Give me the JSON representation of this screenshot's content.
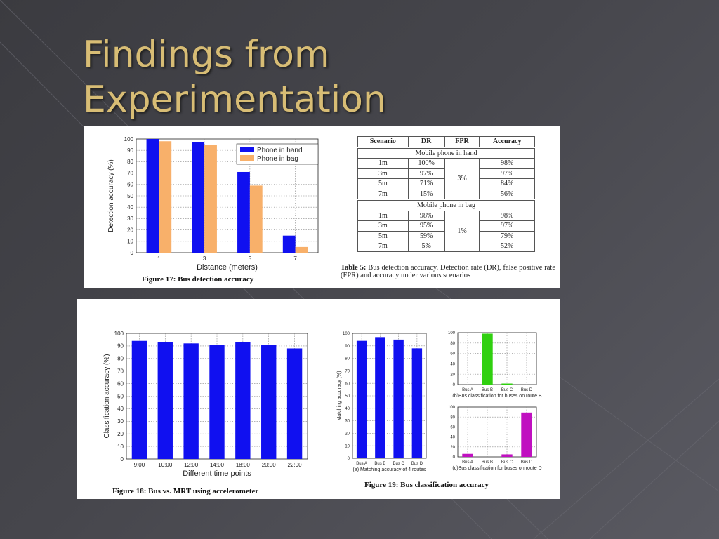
{
  "slide": {
    "title_line1": "Findings from",
    "title_line2": "Experimentation"
  },
  "colors": {
    "title": "#d8bd75",
    "phone_in_hand": "#1010f0",
    "phone_in_bag": "#f8b06a",
    "accent_blue": "#1010f0",
    "accent_green": "#30d010",
    "accent_magenta": "#c010c0"
  },
  "figure17": {
    "caption": "Figure 17: Bus detection accuracy"
  },
  "table5": {
    "caption_label": "Table 5:",
    "caption_text": " Bus detection accuracy. Detection rate (DR), false positive rate (FPR) and accuracy under various scenarios",
    "headers": [
      "Scenario",
      "DR",
      "FPR",
      "Accuracy"
    ],
    "sections": [
      {
        "label": "Mobile phone in hand",
        "fpr": "3%",
        "rows": [
          {
            "scenario": "1m",
            "dr": "100%",
            "accuracy": "98%"
          },
          {
            "scenario": "3m",
            "dr": "97%",
            "accuracy": "97%"
          },
          {
            "scenario": "5m",
            "dr": "71%",
            "accuracy": "84%"
          },
          {
            "scenario": "7m",
            "dr": "15%",
            "accuracy": "56%"
          }
        ]
      },
      {
        "label": "Mobile phone in bag",
        "fpr": "1%",
        "rows": [
          {
            "scenario": "1m",
            "dr": "98%",
            "accuracy": "98%"
          },
          {
            "scenario": "3m",
            "dr": "95%",
            "accuracy": "97%"
          },
          {
            "scenario": "5m",
            "dr": "59%",
            "accuracy": "79%"
          },
          {
            "scenario": "7m",
            "dr": "5%",
            "accuracy": "52%"
          }
        ]
      }
    ]
  },
  "figure18": {
    "caption": "Figure 18: Bus vs. MRT using accelerometer"
  },
  "figure19": {
    "caption": "Figure 19: Bus classification accuracy"
  },
  "chart_data": [
    {
      "id": "fig17",
      "type": "bar",
      "xlabel": "Distance (meters)",
      "ylabel": "Detection accuracy (%)",
      "ylim": [
        0,
        100
      ],
      "yticks": [
        0,
        10,
        20,
        30,
        40,
        50,
        60,
        70,
        80,
        90,
        100
      ],
      "grid": true,
      "legend": "top-right",
      "categories": [
        "1",
        "3",
        "5",
        "7"
      ],
      "series": [
        {
          "name": "Phone in hand",
          "color": "#1010f0",
          "values": [
            100,
            97,
            71,
            15
          ]
        },
        {
          "name": "Phone in bag",
          "color": "#f8b06a",
          "values": [
            98,
            95,
            59,
            5
          ]
        }
      ]
    },
    {
      "id": "fig18",
      "type": "bar",
      "xlabel": "Different time points",
      "ylabel": "Classification accuracy (%)",
      "ylim": [
        0,
        100
      ],
      "yticks": [
        0,
        10,
        20,
        30,
        40,
        50,
        60,
        70,
        80,
        90,
        100
      ],
      "grid": true,
      "categories": [
        "9:00",
        "10:00",
        "12:00",
        "14:00",
        "18:00",
        "20:00",
        "22:00"
      ],
      "series": [
        {
          "color": "#1010f0",
          "values": [
            94,
            93,
            92,
            91,
            93,
            91,
            88
          ]
        }
      ]
    },
    {
      "id": "fig19a",
      "type": "bar",
      "xlabel": "(a) Matching accuracy of 4 routes",
      "ylabel": "Matching accuracy (%)",
      "ylim": [
        0,
        100
      ],
      "yticks": [
        0,
        10,
        20,
        30,
        40,
        50,
        60,
        70,
        80,
        90,
        100
      ],
      "grid": true,
      "categories": [
        "Bus A",
        "Bus B",
        "Bus C",
        "Bus D"
      ],
      "series": [
        {
          "color": "#1010f0",
          "values": [
            94,
            97,
            95,
            88
          ]
        }
      ]
    },
    {
      "id": "fig19b",
      "type": "bar",
      "xlabel": "(b)Bus classification for buses on route B",
      "ylim": [
        0,
        100
      ],
      "yticks": [
        0,
        20,
        40,
        60,
        80,
        100
      ],
      "grid": true,
      "categories": [
        "Bus A",
        "Bus B",
        "Bus C",
        "Bus D"
      ],
      "series": [
        {
          "color": "#30d010",
          "values": [
            0,
            98,
            2,
            0
          ]
        }
      ]
    },
    {
      "id": "fig19c",
      "type": "bar",
      "xlabel": "(c)Bus classification for buses on route D",
      "ylim": [
        0,
        100
      ],
      "yticks": [
        0,
        20,
        40,
        60,
        80,
        100
      ],
      "grid": true,
      "categories": [
        "Bus A",
        "Bus B",
        "Bus C",
        "Bus D"
      ],
      "series": [
        {
          "color": "#c010c0",
          "values": [
            6,
            0,
            5,
            89
          ]
        }
      ]
    }
  ]
}
